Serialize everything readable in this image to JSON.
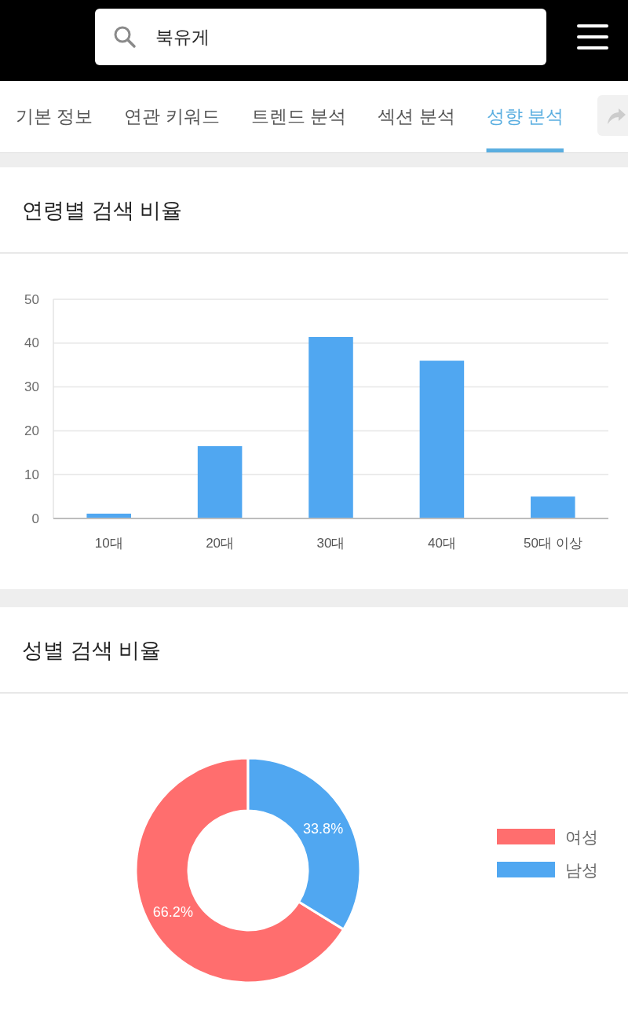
{
  "chart_data": [
    {
      "type": "other",
      "title": "북유게",
      "annotations": [
        "기본 정보",
        "연관 키워드",
        "트렌드 분석",
        "섹션 분석",
        "성향 분석"
      ]
    },
    {
      "type": "bar",
      "title": "연령별 검색 비율",
      "categories": [
        "10대",
        "20대",
        "30대",
        "40대",
        "50대 이상"
      ],
      "values": [
        1.1,
        16.5,
        41.4,
        36.0,
        5.0
      ],
      "color": "#50a7f1",
      "ylim": [
        0,
        50
      ],
      "yticks": [
        0,
        10,
        20,
        30,
        40,
        50
      ],
      "grid": "y"
    },
    {
      "type": "donut",
      "title": "성별 검색 비율",
      "categories": [
        "여성",
        "남성"
      ],
      "values": [
        66.2,
        33.8
      ],
      "colors": [
        "#ff6e6e",
        "#50a7f1"
      ],
      "value_labels": [
        "66.2%",
        "33.8%"
      ],
      "legend": "right"
    }
  ]
}
